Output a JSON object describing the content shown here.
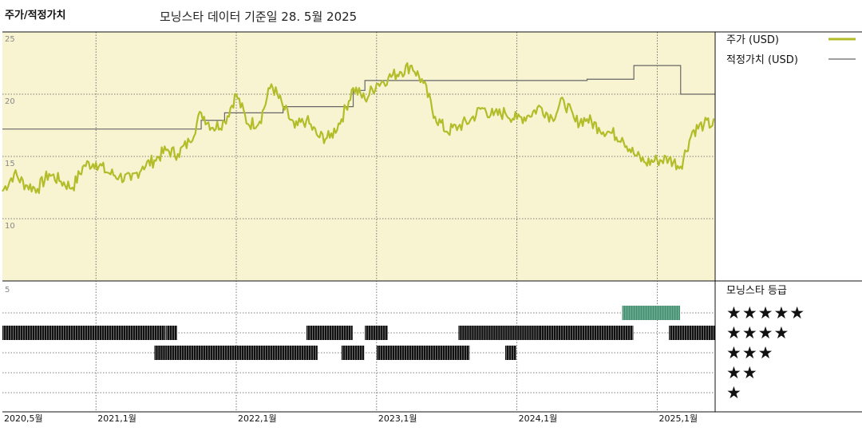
{
  "chart_data": {
    "type": "line",
    "title": "주가/적정가치",
    "subtitle": "모닝스타 데이터 기준일 28. 5월 2025",
    "x_tick_labels": [
      "2020,5월",
      "2021,1월",
      "2022,1월",
      "2023,1월",
      "2024,1월",
      "2025,1월"
    ],
    "x_tick_dates": [
      "2020-05",
      "2021-01",
      "2022-01",
      "2023-01",
      "2024-01",
      "2025-01"
    ],
    "x_range": [
      "2020-05",
      "2025-05"
    ],
    "y_tick_labels": [
      "25",
      "20",
      "15",
      "10"
    ],
    "y_ticks": [
      25,
      20,
      15,
      10
    ],
    "ylim": [
      5,
      25
    ],
    "grid": true,
    "legend_position": "right",
    "colors": {
      "price": "#b3bd2a",
      "fair_value": "#666666",
      "plot_bg": "#f8f4d2",
      "rating_bar": "#111111",
      "rating_5": "#3f8f6f"
    },
    "series": [
      {
        "name": "주가 (USD)",
        "points": [
          [
            "2020-05",
            12.2
          ],
          [
            "2020-06",
            13.6
          ],
          [
            "2020-07",
            12.7
          ],
          [
            "2020-08",
            12.4
          ],
          [
            "2020-09",
            13.6
          ],
          [
            "2020-10",
            13.0
          ],
          [
            "2020-11",
            12.5
          ],
          [
            "2020-12",
            14.3
          ],
          [
            "2021-01",
            14.5
          ],
          [
            "2021-02",
            13.7
          ],
          [
            "2021-03",
            13.4
          ],
          [
            "2021-04",
            13.1
          ],
          [
            "2021-05",
            14.2
          ],
          [
            "2021-06",
            14.7
          ],
          [
            "2021-07",
            15.5
          ],
          [
            "2021-08",
            15.2
          ],
          [
            "2021-09",
            16.2
          ],
          [
            "2021-10",
            18.5
          ],
          [
            "2021-11",
            17.3
          ],
          [
            "2021-12",
            17.8
          ],
          [
            "2022-01",
            20.0
          ],
          [
            "2022-02",
            17.6
          ],
          [
            "2022-03",
            17.8
          ],
          [
            "2022-04",
            20.8
          ],
          [
            "2022-05",
            19.0
          ],
          [
            "2022-06",
            17.3
          ],
          [
            "2022-07",
            17.9
          ],
          [
            "2022-08",
            16.6
          ],
          [
            "2022-09",
            16.5
          ],
          [
            "2022-10",
            18.0
          ],
          [
            "2022-11",
            20.5
          ],
          [
            "2022-12",
            19.6
          ],
          [
            "2023-01",
            20.8
          ],
          [
            "2023-02",
            21.3
          ],
          [
            "2023-03",
            21.8
          ],
          [
            "2023-04",
            22.3
          ],
          [
            "2023-05",
            20.9
          ],
          [
            "2023-06",
            18.2
          ],
          [
            "2023-07",
            17.0
          ],
          [
            "2023-08",
            17.4
          ],
          [
            "2023-09",
            17.9
          ],
          [
            "2023-10",
            18.9
          ],
          [
            "2023-11",
            18.3
          ],
          [
            "2023-12",
            18.5
          ],
          [
            "2024-01",
            18.0
          ],
          [
            "2024-02",
            18.3
          ],
          [
            "2024-03",
            19.0
          ],
          [
            "2024-04",
            18.1
          ],
          [
            "2024-05",
            19.5
          ],
          [
            "2024-06",
            17.8
          ],
          [
            "2024-07",
            18.0
          ],
          [
            "2024-08",
            17.3
          ],
          [
            "2024-09",
            16.9
          ],
          [
            "2024-10",
            16.5
          ],
          [
            "2024-11",
            15.2
          ],
          [
            "2024-12",
            14.5
          ],
          [
            "2025-01",
            14.7
          ],
          [
            "2025-02",
            14.8
          ],
          [
            "2025-03",
            14.2
          ],
          [
            "2025-04",
            17.0
          ],
          [
            "2025-05",
            17.6
          ]
        ]
      },
      {
        "name": "적정가치 (USD)",
        "steps": [
          [
            "2020-05",
            17.2
          ],
          [
            "2021-10",
            17.9
          ],
          [
            "2021-12",
            18.5
          ],
          [
            "2022-05",
            19.0
          ],
          [
            "2022-11",
            20.3
          ],
          [
            "2022-12",
            21.1
          ],
          [
            "2024-07",
            21.2
          ],
          [
            "2024-11",
            22.3
          ],
          [
            "2025-03",
            20.0
          ],
          [
            "2025-05",
            20.0
          ]
        ]
      }
    ],
    "rating_panel": {
      "title": "모닝스타 등급",
      "scale_label": "5",
      "rows": [
        {
          "stars": "★★★★★",
          "rating": 5,
          "periods": [
            [
              "2024-10",
              "2025-02"
            ]
          ]
        },
        {
          "stars": "★★★★",
          "rating": 4,
          "periods": [
            [
              "2020-05",
              "2021-06"
            ],
            [
              "2021-07",
              "2021-07"
            ],
            [
              "2022-07",
              "2022-10"
            ],
            [
              "2022-12",
              "2023-01"
            ],
            [
              "2023-08",
              "2024-03"
            ],
            [
              "2024-03",
              "2024-10"
            ],
            [
              "2025-02",
              "2025-05"
            ]
          ]
        },
        {
          "stars": "★★★",
          "rating": 3,
          "periods": [
            [
              "2021-06",
              "2021-07"
            ],
            [
              "2021-07",
              "2022-07"
            ],
            [
              "2022-10",
              "2022-11"
            ],
            [
              "2023-01",
              "2023-08"
            ],
            [
              "2023-12",
              "2023-12"
            ]
          ]
        },
        {
          "stars": "★★",
          "rating": 2,
          "periods": []
        },
        {
          "stars": "★",
          "rating": 1,
          "periods": []
        }
      ]
    }
  }
}
